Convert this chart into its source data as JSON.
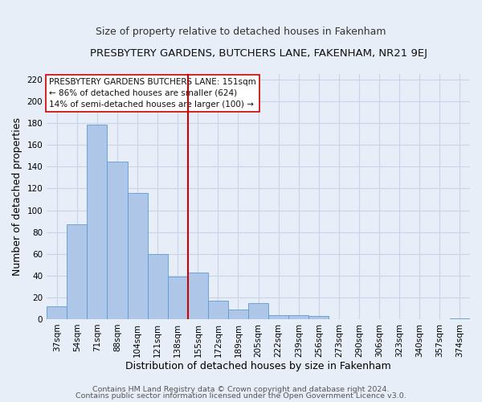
{
  "title": "PRESBYTERY GARDENS, BUTCHERS LANE, FAKENHAM, NR21 9EJ",
  "subtitle": "Size of property relative to detached houses in Fakenham",
  "xlabel": "Distribution of detached houses by size in Fakenham",
  "ylabel": "Number of detached properties",
  "bar_labels": [
    "37sqm",
    "54sqm",
    "71sqm",
    "88sqm",
    "104sqm",
    "121sqm",
    "138sqm",
    "155sqm",
    "172sqm",
    "189sqm",
    "205sqm",
    "222sqm",
    "239sqm",
    "256sqm",
    "273sqm",
    "290sqm",
    "306sqm",
    "323sqm",
    "340sqm",
    "357sqm",
    "374sqm"
  ],
  "bar_values": [
    12,
    87,
    179,
    145,
    116,
    60,
    39,
    43,
    17,
    9,
    15,
    4,
    4,
    3,
    0,
    0,
    0,
    0,
    0,
    0,
    1
  ],
  "bar_color": "#aec6e8",
  "bar_edge_color": "#5b9bd5",
  "vline_color": "#cc0000",
  "vline_x_index": 7,
  "ylim": [
    0,
    225
  ],
  "yticks": [
    0,
    20,
    40,
    60,
    80,
    100,
    120,
    140,
    160,
    180,
    200,
    220
  ],
  "annotation_line1": "PRESBYTERY GARDENS BUTCHERS LANE: 151sqm",
  "annotation_line2": "← 86% of detached houses are smaller (624)",
  "annotation_line3": "14% of semi-detached houses are larger (100) →",
  "footer_line1": "Contains HM Land Registry data © Crown copyright and database right 2024.",
  "footer_line2": "Contains public sector information licensed under the Open Government Licence v3.0.",
  "bg_color": "#e8eef8",
  "grid_color": "#c8d4e8",
  "title_fontsize": 9.5,
  "subtitle_fontsize": 9,
  "axis_label_fontsize": 9,
  "tick_fontsize": 7.5,
  "annotation_fontsize": 7.5,
  "footer_fontsize": 6.8
}
